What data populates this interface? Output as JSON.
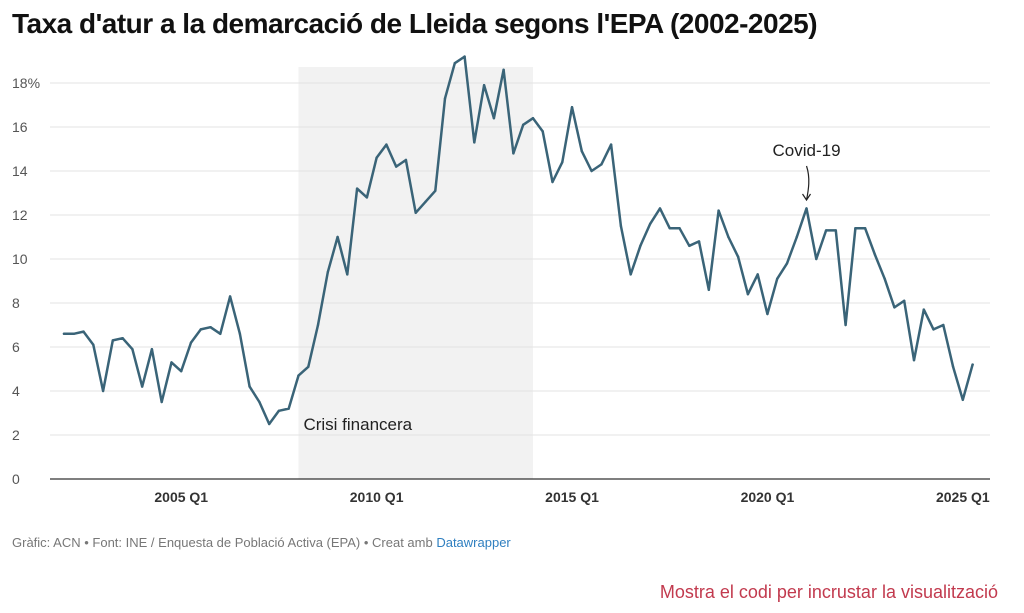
{
  "title": "Taxa d'atur a la demarcació de Lleida segons l'EPA (2002-2025)",
  "footer": {
    "text": "Gràfic: ACN • Font: INE / Enquesta de Població Activa (EPA) • Creat amb ",
    "link": "Datawrapper"
  },
  "embed_link": "Mostra el codi per incrustar la visualització",
  "chart_data": {
    "type": "line",
    "title": "Taxa d'atur a la demarcació de Lleida segons l'EPA (2002-2025)",
    "xlabel": "",
    "ylabel": "",
    "x_start": "2002 Q1",
    "x_end": "2025 Q2",
    "x_ticks": [
      "2005 Q1",
      "2010 Q1",
      "2015 Q1",
      "2020 Q1",
      "2025 Q1"
    ],
    "y_ticks": [
      0,
      2,
      4,
      6,
      8,
      10,
      12,
      14,
      16,
      18
    ],
    "y_tick_labels": [
      "0",
      "2",
      "4",
      "6",
      "8",
      "10",
      "12",
      "14",
      "16",
      "18%"
    ],
    "ylim": [
      0,
      19.5
    ],
    "grid": true,
    "line_color": "#3a6478",
    "shaded_region": {
      "label": "Crisi financera",
      "from": "2008 Q1",
      "to": "2014 Q1",
      "color": "#f2f2f2"
    },
    "annotations": [
      {
        "text": "Covid-19",
        "x": "2021 Q1",
        "y": 12.3
      }
    ],
    "series": [
      {
        "values": [
          6.6,
          6.6,
          6.7,
          6.1,
          4.0,
          6.3,
          6.4,
          5.9,
          4.2,
          5.9,
          3.5,
          5.3,
          4.9,
          6.2,
          6.8,
          6.9,
          6.6,
          8.3,
          6.6,
          4.2,
          3.5,
          2.5,
          3.1,
          3.2,
          4.7,
          5.1,
          7.0,
          9.4,
          11.0,
          9.3,
          13.2,
          12.8,
          14.6,
          15.2,
          14.2,
          14.5,
          12.1,
          12.6,
          13.1,
          17.3,
          18.9,
          19.2,
          15.3,
          17.9,
          16.4,
          18.6,
          14.8,
          16.1,
          16.4,
          15.8,
          13.5,
          14.4,
          16.9,
          14.9,
          14.0,
          14.3,
          15.2,
          11.5,
          9.3,
          10.6,
          11.6,
          12.3,
          11.4,
          11.4,
          10.6,
          10.8,
          8.6,
          12.2,
          11.0,
          10.1,
          8.4,
          9.3,
          7.5,
          9.1,
          9.8,
          11.0,
          12.3,
          10.0,
          11.3,
          11.3,
          7.0,
          11.4,
          11.4,
          10.2,
          9.1,
          7.8,
          8.1,
          5.4,
          7.7,
          6.8,
          7.0,
          5.1,
          3.6,
          5.2
        ]
      }
    ]
  }
}
